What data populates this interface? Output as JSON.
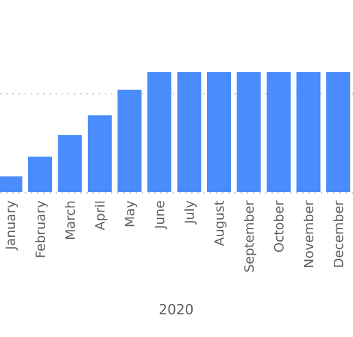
{
  "chart_data": {
    "type": "bar",
    "categories": [
      "January",
      "February",
      "March",
      "April",
      "May",
      "June",
      "July",
      "August",
      "September",
      "October",
      "November",
      "December"
    ],
    "values": [
      8,
      18,
      29,
      39,
      52,
      61,
      61,
      61,
      61,
      61,
      61,
      61
    ],
    "title": "",
    "xlabel": "2020",
    "ylabel": "",
    "ylim": [
      0,
      100
    ],
    "reference_line": 50,
    "grid": false,
    "colors": {
      "bar": "#4a8cfb",
      "text": "#606060",
      "reference_line": "#c8c8c8"
    }
  }
}
